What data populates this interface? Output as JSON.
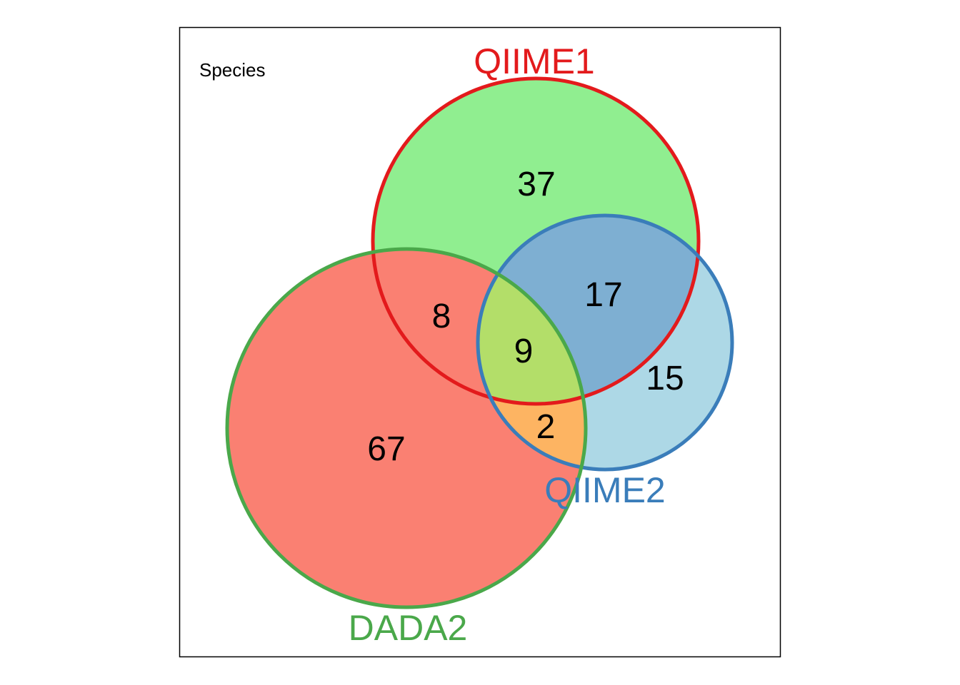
{
  "title": "Species",
  "colors": {
    "set_a_stroke": "#e31a1c",
    "set_b_stroke": "#3a7dba",
    "set_c_stroke": "#4aa84a",
    "only_a_fill": "#90ee90",
    "only_b_fill": "#add8e6",
    "only_c_fill": "#fa8072",
    "a_b_fill": "#7eafd2",
    "a_c_fill": "#fa8072",
    "b_c_fill": "#fdb462",
    "a_b_c_fill": "#b3de69"
  },
  "chart_data": {
    "type": "venn",
    "title": "Species",
    "sets": [
      "QIIME1",
      "QIIME2",
      "DADA2"
    ],
    "regions": [
      {
        "sets": [
          "QIIME1"
        ],
        "value": "37"
      },
      {
        "sets": [
          "QIIME2"
        ],
        "value": "15"
      },
      {
        "sets": [
          "DADA2"
        ],
        "value": "67"
      },
      {
        "sets": [
          "QIIME1",
          "QIIME2"
        ],
        "value": "17"
      },
      {
        "sets": [
          "QIIME1",
          "DADA2"
        ],
        "value": "8"
      },
      {
        "sets": [
          "QIIME2",
          "DADA2"
        ],
        "value": "2"
      },
      {
        "sets": [
          "QIIME1",
          "QIIME2",
          "DADA2"
        ],
        "value": "9"
      }
    ]
  }
}
